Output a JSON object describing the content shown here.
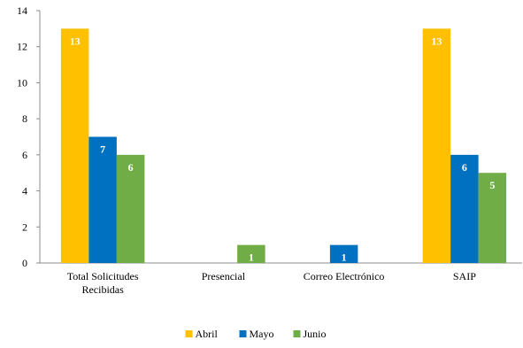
{
  "chart_data": {
    "type": "bar",
    "categories": [
      [
        "Total Solicitudes",
        "Recibidas"
      ],
      [
        "Presencial"
      ],
      [
        "Correo Electrónico"
      ],
      [
        "SAIP"
      ]
    ],
    "series": [
      {
        "name": "Abril",
        "color": "#FFC000",
        "values": [
          13,
          0,
          0,
          13
        ]
      },
      {
        "name": "Mayo",
        "color": "#0070C0",
        "values": [
          7,
          0,
          1,
          6
        ]
      },
      {
        "name": "Junio",
        "color": "#70AD47",
        "values": [
          6,
          1,
          0,
          5
        ]
      }
    ],
    "ylim": [
      0,
      14
    ],
    "yticks": [
      0,
      2,
      4,
      6,
      8,
      10,
      12,
      14
    ],
    "grid": false,
    "legend": "bottom"
  }
}
